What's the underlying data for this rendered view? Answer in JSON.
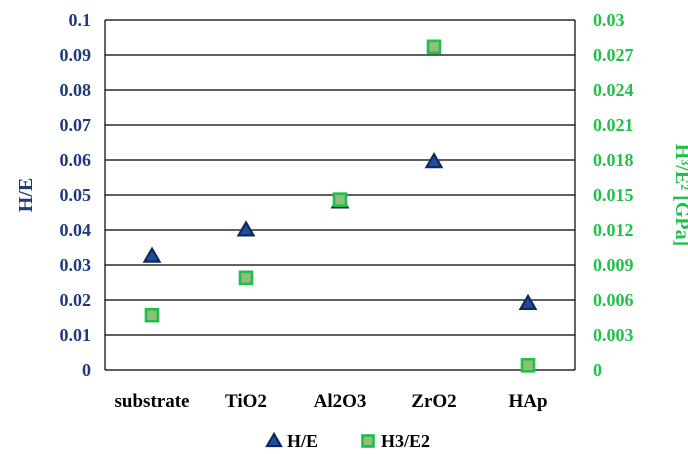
{
  "chart_data": {
    "type": "scatter",
    "categories": [
      "substrate",
      "TiO2",
      "Al2O3",
      "ZrO2",
      "HAp"
    ],
    "series": [
      {
        "name": "H/E",
        "axis": "left",
        "marker": "triangle",
        "color": "#1f4e9c",
        "stroke": "#0d2a5c",
        "values": [
          0.0325,
          0.04,
          0.048,
          0.0595,
          0.019
        ]
      },
      {
        "name": "H3/E2",
        "axis": "right",
        "marker": "square",
        "color": "#8fbf7a",
        "stroke": "#1fbf4a",
        "values": [
          0.0047,
          0.0079,
          0.0146,
          0.0277,
          0.0004
        ]
      }
    ],
    "y_left": {
      "label": "H/E",
      "ylim": [
        0,
        0.1
      ],
      "ticks": [
        "0",
        "0.01",
        "0.02",
        "0.03",
        "0.04",
        "0.05",
        "0.06",
        "0.07",
        "0.08",
        "0.09",
        "0.1"
      ],
      "color": "#1f3a7a"
    },
    "y_right": {
      "label": "H³/E² [GPa]",
      "ylim": [
        0,
        0.03
      ],
      "ticks": [
        "0",
        "0.003",
        "0.006",
        "0.009",
        "0.012",
        "0.015",
        "0.018",
        "0.021",
        "0.024",
        "0.027",
        "0.03"
      ],
      "color": "#22c04a"
    },
    "grid": "horizontal",
    "legend": "bottom-center"
  }
}
